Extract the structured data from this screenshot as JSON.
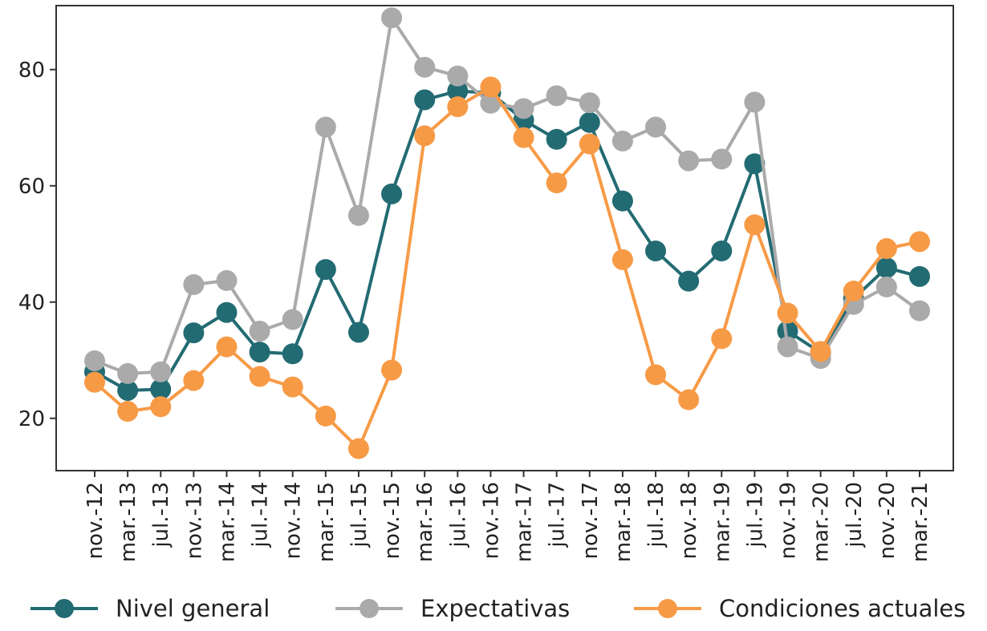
{
  "chart_data": {
    "type": "line",
    "categories": [
      "nov.-12",
      "mar.-13",
      "jul.-13",
      "nov.-13",
      "mar.-14",
      "jul.-14",
      "nov.-14",
      "mar.-15",
      "jul.-15",
      "nov.-15",
      "mar.-16",
      "jul.-16",
      "nov.-16",
      "mar.-17",
      "jul.-17",
      "nov.-17",
      "mar.-18",
      "jul.-18",
      "nov.-18",
      "mar.-19",
      "jul.-19",
      "nov.-19",
      "mar.-20",
      "jul.-20",
      "nov.-20",
      "mar.-21"
    ],
    "series": [
      {
        "name": "Nivel general",
        "color": "#236b73",
        "values": [
          28,
          24.8,
          25,
          34.7,
          38.2,
          31.4,
          31.1,
          45.6,
          34.8,
          58.6,
          74.8,
          76.3,
          76,
          71.3,
          68,
          70.9,
          57.4,
          48.8,
          43.6,
          48.8,
          63.8,
          35,
          31.3,
          40.6,
          45.9,
          44.4
        ]
      },
      {
        "name": "Expectativas",
        "color": "#aaaaaa",
        "values": [
          29.9,
          27.7,
          28,
          43,
          43.7,
          35,
          37,
          70.1,
          54.9,
          88.9,
          80.4,
          78.9,
          74.2,
          73.3,
          75.5,
          74.3,
          67.7,
          70.1,
          64.3,
          64.6,
          74.4,
          32.3,
          30.3,
          39.6,
          42.6,
          38.5
        ]
      },
      {
        "name": "Condiciones actuales",
        "color": "#f79a46",
        "values": [
          26.2,
          21.2,
          22,
          26.5,
          32.3,
          27.2,
          25.4,
          20.4,
          14.8,
          28.3,
          68.6,
          73.6,
          77,
          68.3,
          60.5,
          67.2,
          47.3,
          27.5,
          23.2,
          33.7,
          53.3,
          38.1,
          31.5,
          41.9,
          49.2,
          50.4
        ]
      }
    ],
    "yticks": [
      20,
      40,
      60,
      80
    ],
    "ylim": [
      11,
      91
    ],
    "grid": false,
    "legend_position": "bottom",
    "title": "",
    "xlabel": "",
    "ylabel": ""
  },
  "legend": {
    "items": [
      {
        "label": "Nivel general",
        "color": "#236b73"
      },
      {
        "label": "Expectativas",
        "color": "#aaaaaa"
      },
      {
        "label": "Condiciones actuales",
        "color": "#f79a46"
      }
    ]
  }
}
